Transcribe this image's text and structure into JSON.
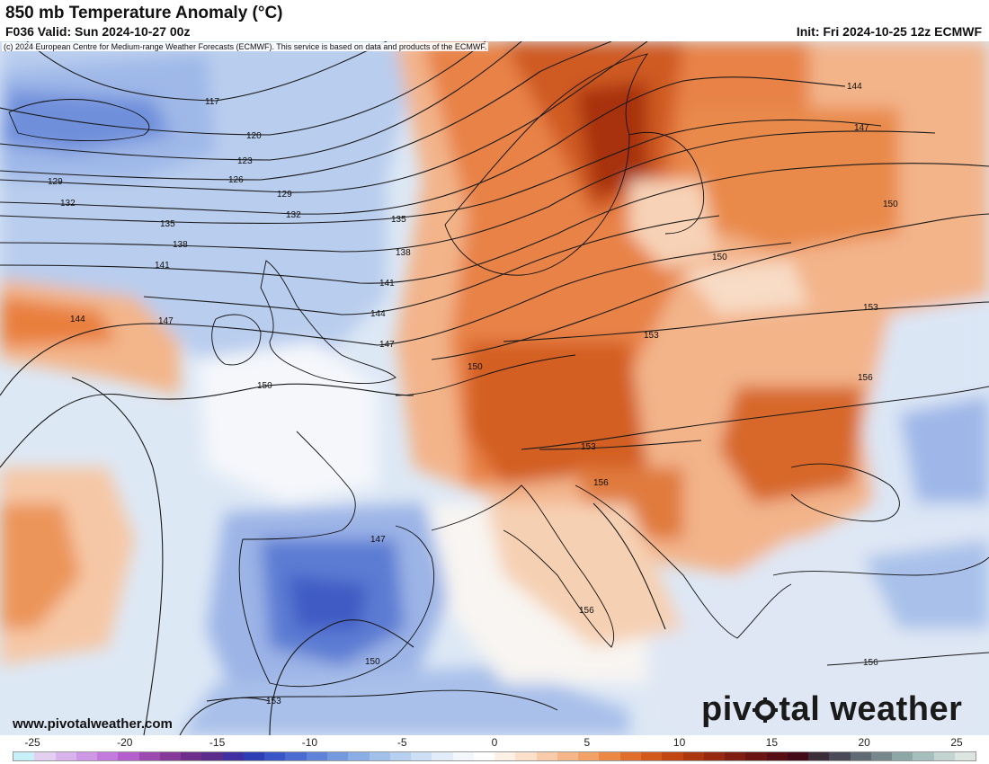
{
  "header": {
    "title": "850 mb Temperature Anomaly (°C)",
    "valid": "F036 Valid: Sun 2024-10-27 00z",
    "init": "Init: Fri 2024-10-25 12z ECMWF"
  },
  "copyright": "(c) 2024 European Centre for Medium-range Weather Forecasts (ECMWF). This service is based on data and products of the ECMWF.",
  "footer": {
    "website": "www.pivotalweather.com",
    "brand_prefix": "piv",
    "brand_suffix": "tal weather"
  },
  "height_contours": {
    "labels": [
      "117",
      "120",
      "123",
      "126",
      "129",
      "129",
      "132",
      "132",
      "135",
      "135",
      "138",
      "138",
      "141",
      "141",
      "144",
      "144",
      "144",
      "147",
      "147",
      "147",
      "147",
      "150",
      "150",
      "150",
      "150",
      "150",
      "153",
      "153",
      "153",
      "153",
      "156",
      "156",
      "156",
      "156"
    ]
  },
  "colorbar": {
    "ticks": [
      "-25",
      "-20",
      "-15",
      "-10",
      "-5",
      "0",
      "5",
      "10",
      "15",
      "20",
      "25"
    ],
    "colors": [
      "#c8f0f8",
      "#e3d0f0",
      "#d9b4ec",
      "#cf98e6",
      "#c27bdc",
      "#b45fcd",
      "#9c4ab0",
      "#853a99",
      "#6e2f8a",
      "#5a2c8c",
      "#3f2fa0",
      "#2e3fb5",
      "#3a55c6",
      "#4b6bd1",
      "#5e83d8",
      "#7499df",
      "#8aade5",
      "#a1c0ea",
      "#b7d0ef",
      "#cddff4",
      "#e2ebf8",
      "#f3f6fb",
      "#ffffff",
      "#fdf1e6",
      "#fbe0cb",
      "#f8ccaa",
      "#f5b788",
      "#f2a266",
      "#ec8846",
      "#e06e2c",
      "#d2581b",
      "#c14612",
      "#ab370f",
      "#96290f",
      "#7f1d10",
      "#6a1412",
      "#560e14",
      "#420a16",
      "#3a2d38",
      "#4a4a56",
      "#5f6a72",
      "#76888c",
      "#8da6a6",
      "#a6bfbd",
      "#c3d4d1",
      "#dde5e1"
    ],
    "lut": {
      "dblue": "#4a62c7",
      "mblue": "#7e9fe0",
      "lblue": "#b5cdef",
      "vlblue": "#dce8f6",
      "vlorange": "#fbe3d0",
      "lorange": "#f6c19c",
      "morange": "#ec8f52",
      "dorange": "#d35f24",
      "vdorange": "#b8430f"
    }
  }
}
